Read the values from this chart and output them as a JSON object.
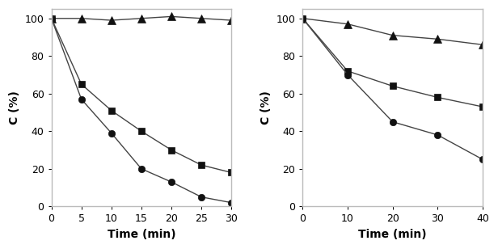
{
  "left": {
    "xlabel": "Time (min)",
    "ylabel": "C (%)",
    "xlim": [
      0,
      30
    ],
    "ylim": [
      0,
      105
    ],
    "xticks": [
      0,
      5,
      10,
      15,
      20,
      25,
      30
    ],
    "yticks": [
      0,
      20,
      40,
      60,
      80,
      100
    ],
    "triangle": {
      "x": [
        0,
        5,
        10,
        15,
        20,
        25,
        30
      ],
      "y": [
        100,
        100,
        99,
        100,
        101,
        100,
        99
      ]
    },
    "square": {
      "x": [
        0,
        5,
        10,
        15,
        20,
        25,
        30
      ],
      "y": [
        100,
        65,
        51,
        40,
        30,
        22,
        18
      ]
    },
    "circle": {
      "x": [
        0,
        5,
        10,
        15,
        20,
        25,
        30
      ],
      "y": [
        100,
        57,
        39,
        20,
        13,
        5,
        2
      ]
    }
  },
  "right": {
    "xlabel": "Time (min)",
    "ylabel": "C (%)",
    "xlim": [
      0,
      40
    ],
    "ylim": [
      0,
      105
    ],
    "xticks": [
      0,
      10,
      20,
      30,
      40
    ],
    "yticks": [
      0,
      20,
      40,
      60,
      80,
      100
    ],
    "triangle": {
      "x": [
        0,
        10,
        20,
        30,
        40
      ],
      "y": [
        100,
        97,
        91,
        89,
        86
      ]
    },
    "square": {
      "x": [
        0,
        10,
        20,
        30,
        40
      ],
      "y": [
        100,
        72,
        64,
        58,
        53
      ]
    },
    "circle": {
      "x": [
        0,
        10,
        20,
        30,
        40
      ],
      "y": [
        100,
        70,
        45,
        38,
        25
      ]
    }
  },
  "line_color": "#444444",
  "marker_color": "#111111",
  "marker_size": 6,
  "line_width": 1.0,
  "font_size_label": 10,
  "font_size_tick": 9,
  "spine_color": "#bbbbbb",
  "bg_color": "#ffffff"
}
